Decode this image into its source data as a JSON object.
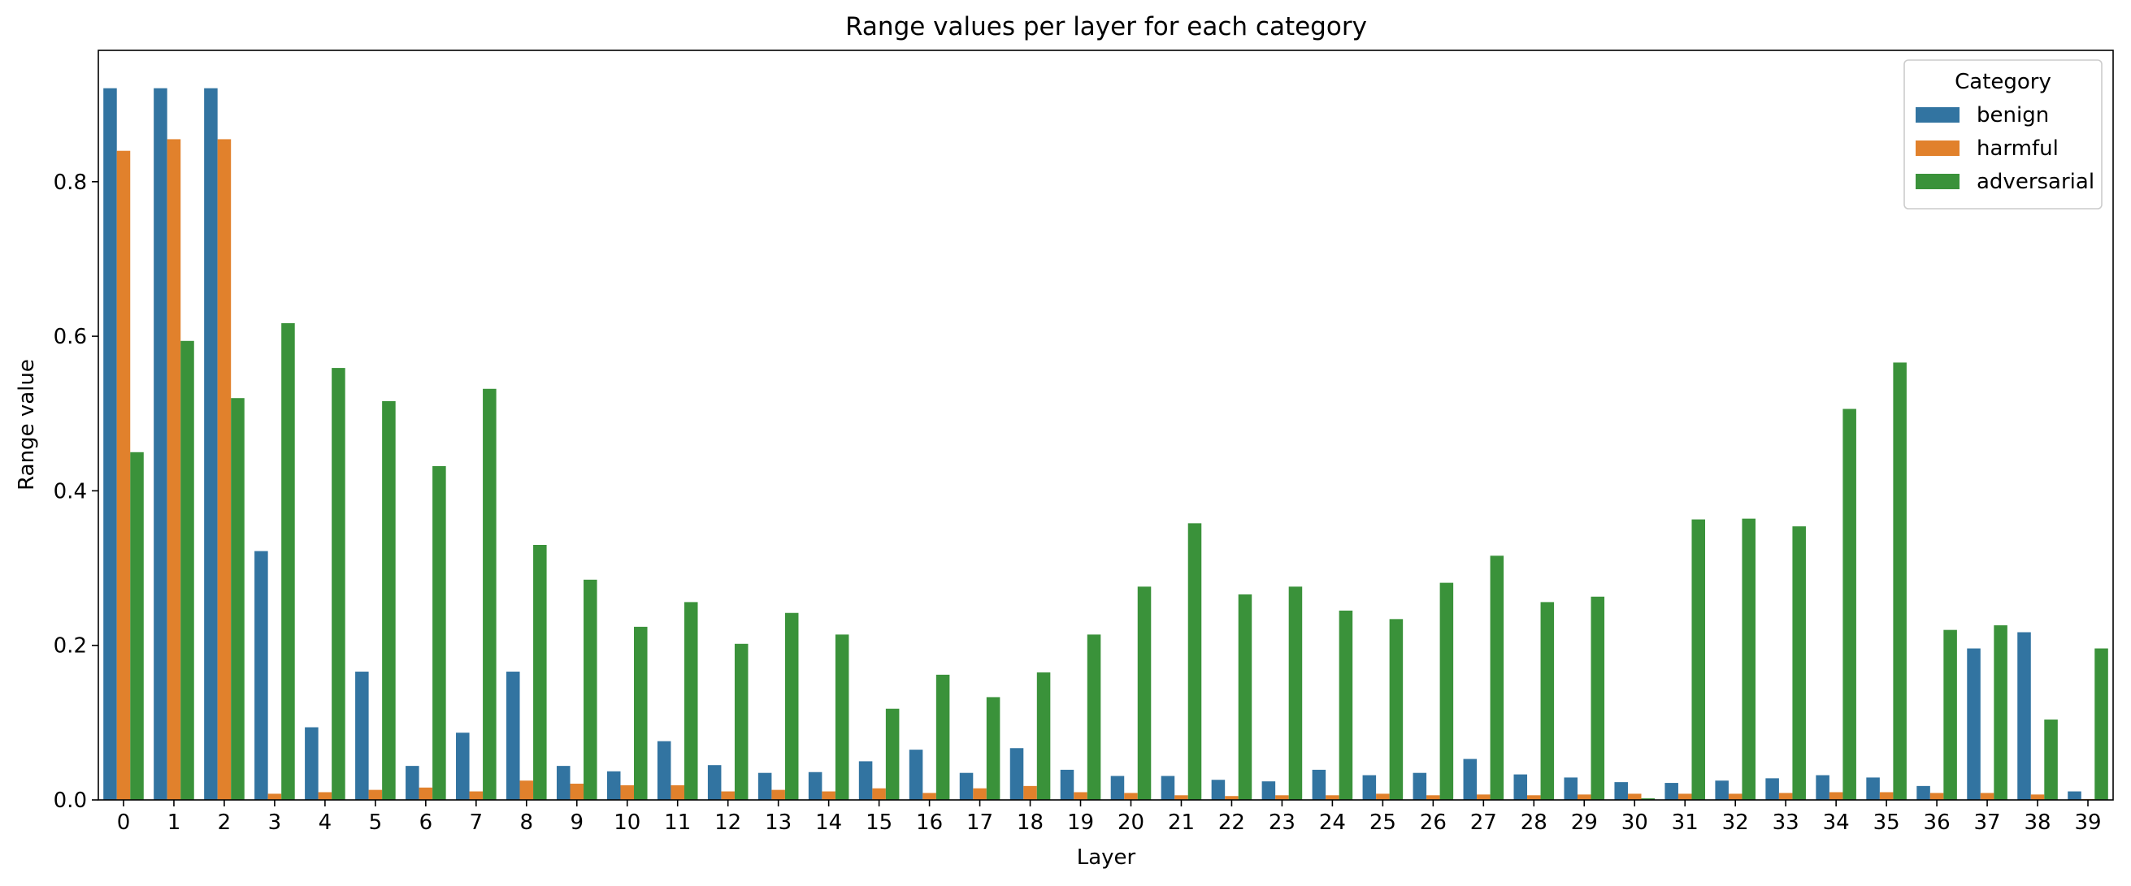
{
  "chart_data": {
    "type": "bar",
    "title": "Range values per layer for each category",
    "xlabel": "Layer",
    "ylabel": "Range value",
    "ylim": [
      0,
      0.97
    ],
    "yticks": [
      "0.0",
      "0.2",
      "0.4",
      "0.6",
      "0.8"
    ],
    "categories": [
      "0",
      "1",
      "2",
      "3",
      "4",
      "5",
      "6",
      "7",
      "8",
      "9",
      "10",
      "11",
      "12",
      "13",
      "14",
      "15",
      "16",
      "17",
      "18",
      "19",
      "20",
      "21",
      "22",
      "23",
      "24",
      "25",
      "26",
      "27",
      "28",
      "29",
      "30",
      "31",
      "32",
      "33",
      "34",
      "35",
      "36",
      "37",
      "38",
      "39"
    ],
    "legend": {
      "title": "Category",
      "position": "top-right"
    },
    "grid": false,
    "series": [
      {
        "name": "benign",
        "color": "#3274a1",
        "values": [
          0.921,
          0.921,
          0.921,
          0.322,
          0.094,
          0.166,
          0.044,
          0.087,
          0.166,
          0.044,
          0.037,
          0.076,
          0.045,
          0.035,
          0.036,
          0.05,
          0.065,
          0.035,
          0.067,
          0.039,
          0.031,
          0.031,
          0.026,
          0.024,
          0.039,
          0.032,
          0.035,
          0.053,
          0.033,
          0.029,
          0.023,
          0.022,
          0.025,
          0.028,
          0.032,
          0.029,
          0.018,
          0.196,
          0.217,
          0.011
        ]
      },
      {
        "name": "harmful",
        "color": "#e1812c",
        "values": [
          0.84,
          0.855,
          0.855,
          0.008,
          0.01,
          0.013,
          0.016,
          0.011,
          0.025,
          0.021,
          0.019,
          0.019,
          0.011,
          0.013,
          0.011,
          0.015,
          0.009,
          0.015,
          0.018,
          0.01,
          0.009,
          0.006,
          0.005,
          0.006,
          0.006,
          0.008,
          0.006,
          0.007,
          0.006,
          0.007,
          0.008,
          0.008,
          0.008,
          0.009,
          0.01,
          0.01,
          0.009,
          0.009,
          0.007,
          0.001
        ]
      },
      {
        "name": "adversarial",
        "color": "#3a923a",
        "values": [
          0.45,
          0.594,
          0.52,
          0.617,
          0.559,
          0.516,
          0.432,
          0.532,
          0.33,
          0.285,
          0.224,
          0.256,
          0.202,
          0.242,
          0.214,
          0.118,
          0.162,
          0.133,
          0.165,
          0.214,
          0.276,
          0.358,
          0.266,
          0.276,
          0.245,
          0.234,
          0.281,
          0.316,
          0.256,
          0.263,
          0.002,
          0.363,
          0.364,
          0.354,
          0.506,
          0.566,
          0.22,
          0.226,
          0.104,
          0.196
        ]
      }
    ]
  }
}
